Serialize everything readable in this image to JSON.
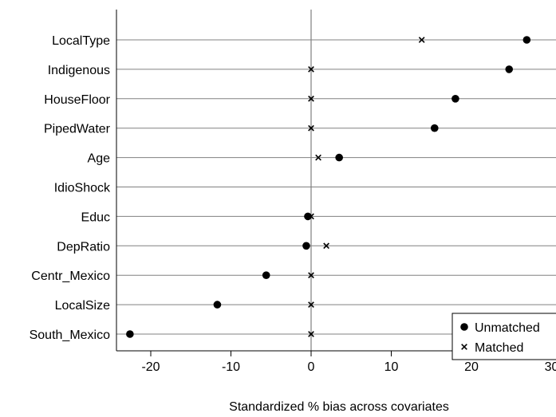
{
  "chart_data": {
    "type": "scatter",
    "title": "",
    "xlabel": "Standardized % bias across covariates",
    "ylabel": "",
    "xlim": [
      -25,
      30
    ],
    "xticks": [
      -20,
      -10,
      0,
      10,
      20,
      30
    ],
    "xtick_labels": [
      "-20",
      "-10",
      "0",
      "10",
      "20",
      "30"
    ],
    "categories": [
      "LocalType",
      "Indigenous",
      "HouseFloor",
      "PipedWater",
      "Age",
      "IdioShock",
      "Educ",
      "DepRatio",
      "Centr_Mexico",
      "LocalSize",
      "South_Mexico"
    ],
    "series": [
      {
        "name": "Unmatched",
        "marker": "circle",
        "values": [
          26.9,
          24.7,
          18.0,
          15.4,
          3.5,
          null,
          -0.4,
          -0.6,
          -5.6,
          -11.7,
          -22.6
        ]
      },
      {
        "name": "Matched",
        "marker": "x",
        "values": [
          13.8,
          0.0,
          0.0,
          0.0,
          0.9,
          null,
          0.0,
          1.9,
          0.0,
          0.0,
          0.0
        ]
      }
    ],
    "reference_line_x": 0,
    "grid": "horizontal",
    "legend_position": "bottom-right"
  },
  "colors": {
    "grid": "#808080",
    "axis": "#000000",
    "zero_line": "#808080",
    "marker": "#000000"
  }
}
